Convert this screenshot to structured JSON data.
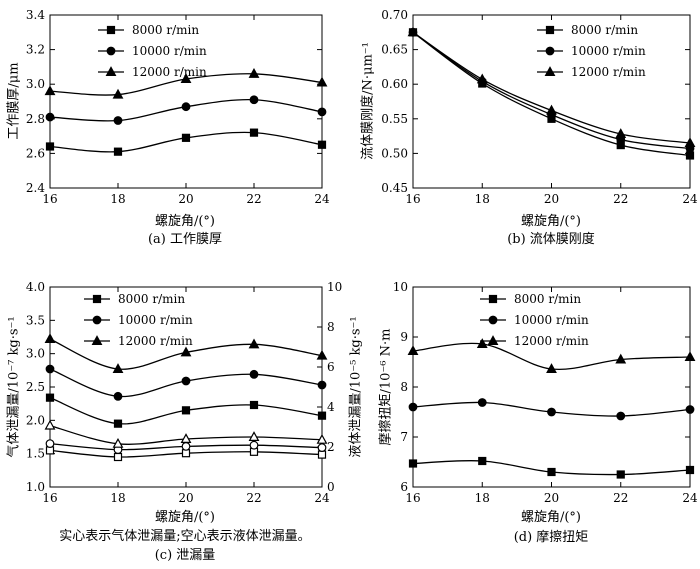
{
  "chart_data": [
    {
      "id": "a",
      "type": "line",
      "caption": "(a) 工作膜厚",
      "xlabel": "螺旋角/(°)",
      "ylabel": "工作膜厚/μm",
      "xlim": [
        16,
        24
      ],
      "ylim": [
        2.4,
        3.4
      ],
      "xticks": [
        "16",
        "18",
        "20",
        "22",
        "24"
      ],
      "yticks": [
        "2.4",
        "2.6",
        "2.8",
        "3.0",
        "3.2",
        "3.4"
      ],
      "legend_position": "top-center",
      "x": [
        16,
        18,
        20,
        22,
        24
      ],
      "series": [
        {
          "name": "8000 r/min",
          "marker": "square",
          "values": [
            2.64,
            2.61,
            2.69,
            2.72,
            2.65
          ]
        },
        {
          "name": "10000 r/min",
          "marker": "circle",
          "values": [
            2.81,
            2.79,
            2.87,
            2.91,
            2.84
          ]
        },
        {
          "name": "12000 r/min",
          "marker": "triangle",
          "values": [
            2.96,
            2.94,
            3.03,
            3.06,
            3.01
          ]
        }
      ]
    },
    {
      "id": "b",
      "type": "line",
      "caption": "(b) 流体膜刚度",
      "xlabel": "螺旋角/(°)",
      "ylabel": "流体膜刚度/N·μm⁻¹",
      "xlim": [
        16,
        24
      ],
      "ylim": [
        0.45,
        0.7
      ],
      "xticks": [
        "16",
        "18",
        "20",
        "22",
        "24"
      ],
      "yticks": [
        "0.45",
        "0.50",
        "0.55",
        "0.60",
        "0.65",
        "0.70"
      ],
      "legend_position": "top-right",
      "x": [
        16,
        18,
        20,
        22,
        24
      ],
      "series": [
        {
          "name": "8000 r/min",
          "marker": "square",
          "values": [
            0.675,
            0.601,
            0.55,
            0.512,
            0.497
          ]
        },
        {
          "name": "10000 r/min",
          "marker": "circle",
          "values": [
            0.675,
            0.604,
            0.556,
            0.52,
            0.507
          ]
        },
        {
          "name": "12000 r/min",
          "marker": "triangle",
          "values": [
            0.675,
            0.607,
            0.562,
            0.528,
            0.515
          ]
        }
      ]
    },
    {
      "id": "c",
      "type": "line",
      "caption": "(c) 泄漏量",
      "note": "实心表示气体泄漏量;空心表示液体泄漏量。",
      "xlabel": "螺旋角/(°)",
      "ylabel": "气体泄漏量/10⁻⁷ kg·s⁻¹",
      "ylabel_right": "液体泄漏量/10⁻⁵ kg·s⁻¹",
      "xlim": [
        16,
        24
      ],
      "ylim": [
        1.0,
        4.0
      ],
      "ylim_right": [
        0,
        10
      ],
      "xticks": [
        "16",
        "18",
        "20",
        "22",
        "24"
      ],
      "yticks": [
        "1.0",
        "1.5",
        "2.0",
        "2.5",
        "3.0",
        "3.5",
        "4.0"
      ],
      "yticks_right": [
        "0",
        "2",
        "4",
        "6",
        "8",
        "10"
      ],
      "legend_position": "top-left",
      "x": [
        16,
        18,
        20,
        22,
        24
      ],
      "series": [
        {
          "name": "8000 r/min",
          "marker": "square",
          "values": [
            2.34,
            1.95,
            2.15,
            2.23,
            2.07
          ]
        },
        {
          "name": "10000 r/min",
          "marker": "circle",
          "values": [
            2.77,
            2.36,
            2.59,
            2.69,
            2.53
          ]
        },
        {
          "name": "12000 r/min",
          "marker": "triangle",
          "values": [
            3.22,
            2.77,
            3.02,
            3.14,
            2.97
          ]
        }
      ],
      "series_right": [
        {
          "name": "8000 r/min",
          "marker": "square-open",
          "values": [
            1.83,
            1.5,
            1.69,
            1.76,
            1.62
          ]
        },
        {
          "name": "10000 r/min",
          "marker": "circle-open",
          "values": [
            2.17,
            1.87,
            2.03,
            2.09,
            1.97
          ]
        },
        {
          "name": "12000 r/min",
          "marker": "triangle-open",
          "values": [
            3.07,
            2.16,
            2.4,
            2.5,
            2.36
          ]
        }
      ]
    },
    {
      "id": "d",
      "type": "line",
      "caption": "(d) 摩擦扭矩",
      "xlabel": "螺旋角/(°)",
      "ylabel": "摩擦扭矩/10⁻⁶ N·m",
      "xlim": [
        16,
        24
      ],
      "ylim": [
        6,
        10
      ],
      "xticks": [
        "16",
        "18",
        "20",
        "22",
        "24"
      ],
      "yticks": [
        "6",
        "7",
        "8",
        "9",
        "10"
      ],
      "legend_position": "top-center",
      "x": [
        16,
        18,
        20,
        22,
        24
      ],
      "series": [
        {
          "name": "8000 r/min",
          "marker": "square",
          "values": [
            6.47,
            6.52,
            6.3,
            6.25,
            6.34
          ]
        },
        {
          "name": "10000 r/min",
          "marker": "circle",
          "values": [
            7.6,
            7.69,
            7.5,
            7.42,
            7.55
          ]
        },
        {
          "name": "12000 r/min",
          "marker": "triangle",
          "values": [
            8.72,
            8.86,
            8.36,
            8.55,
            8.6
          ]
        }
      ]
    }
  ]
}
